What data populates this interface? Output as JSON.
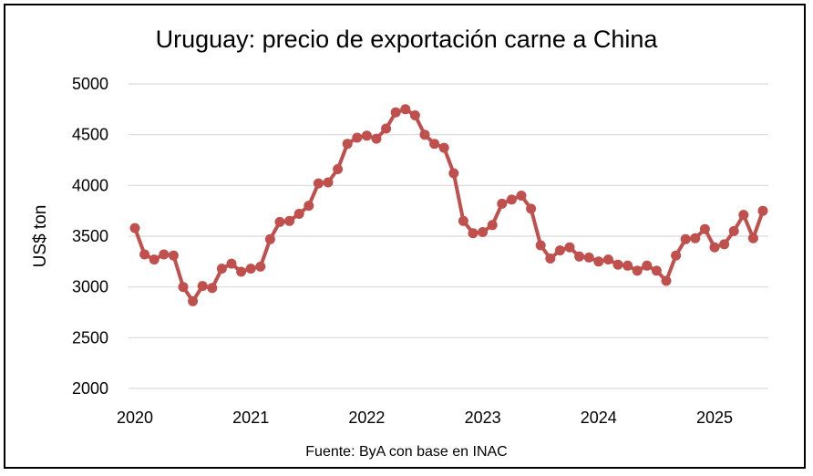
{
  "chart_data": {
    "type": "line",
    "title": "Uruguay: precio de exportación carne a China",
    "ylabel": "US$ ton",
    "xlabel": "",
    "source": "Fuente: ByA con base en INAC",
    "ylim": [
      2000,
      5000
    ],
    "yticks": [
      2000,
      2500,
      3000,
      3500,
      4000,
      4500,
      5000
    ],
    "xticks": [
      "2020",
      "2021",
      "2022",
      "2023",
      "2024",
      "2025"
    ],
    "grid": true,
    "legend": "none",
    "series": [
      {
        "color": "#c0504d",
        "x": [
          "2020-01",
          "2020-02",
          "2020-03",
          "2020-04",
          "2020-05",
          "2020-06",
          "2020-07",
          "2020-08",
          "2020-09",
          "2020-10",
          "2020-11",
          "2020-12",
          "2021-01",
          "2021-02",
          "2021-03",
          "2021-04",
          "2021-05",
          "2021-06",
          "2021-07",
          "2021-08",
          "2021-09",
          "2021-10",
          "2021-11",
          "2021-12",
          "2022-01",
          "2022-02",
          "2022-03",
          "2022-04",
          "2022-05",
          "2022-06",
          "2022-07",
          "2022-08",
          "2022-09",
          "2022-10",
          "2022-11",
          "2022-12",
          "2023-01",
          "2023-02",
          "2023-03",
          "2023-04",
          "2023-05",
          "2023-06",
          "2023-07",
          "2023-08",
          "2023-09",
          "2023-10",
          "2023-11",
          "2023-12",
          "2024-01",
          "2024-02",
          "2024-03",
          "2024-04",
          "2024-05",
          "2024-06",
          "2024-07",
          "2024-08",
          "2024-09",
          "2024-10",
          "2024-11",
          "2024-12",
          "2025-01",
          "2025-02",
          "2025-03",
          "2025-04",
          "2025-05",
          "2025-06"
        ],
        "values": [
          3580,
          3320,
          3270,
          3320,
          3310,
          3000,
          2860,
          3010,
          2990,
          3180,
          3230,
          3150,
          3180,
          3200,
          3470,
          3640,
          3650,
          3720,
          3800,
          4020,
          4030,
          4160,
          4410,
          4470,
          4490,
          4460,
          4560,
          4720,
          4750,
          4690,
          4500,
          4410,
          4370,
          4120,
          3650,
          3530,
          3540,
          3610,
          3820,
          3860,
          3900,
          3770,
          3410,
          3280,
          3360,
          3390,
          3300,
          3290,
          3250,
          3270,
          3220,
          3210,
          3160,
          3210,
          3160,
          3060,
          3310,
          3470,
          3480,
          3570,
          3390,
          3420,
          3550,
          3710,
          3480,
          3750
        ]
      }
    ]
  }
}
